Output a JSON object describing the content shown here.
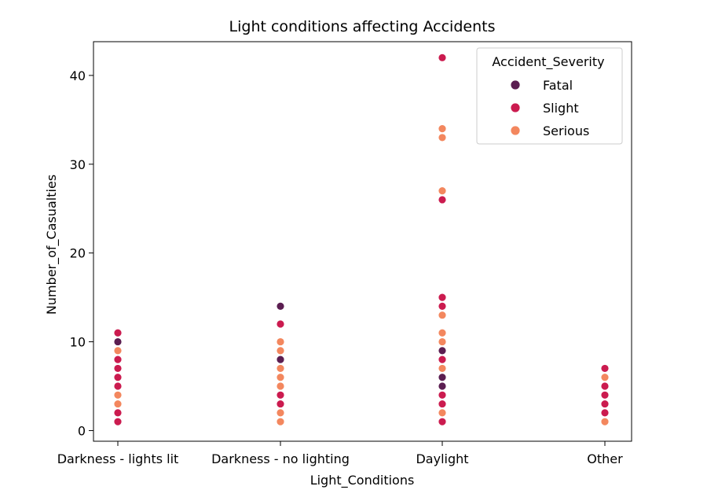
{
  "chart_data": {
    "type": "scatter",
    "title": "Light conditions affecting Accidents",
    "xlabel": "Light_Conditions",
    "ylabel": "Number_of_Casualties",
    "categories": [
      "Darkness - lights lit",
      "Darkness - no lighting",
      "Daylight",
      "Other"
    ],
    "ylim": [
      -1.2,
      43.8
    ],
    "yticks": [
      0,
      10,
      20,
      30,
      40
    ],
    "grid": false,
    "legend": {
      "title": "Accident_Severity",
      "placement": "top-right"
    },
    "series": [
      {
        "name": "Fatal",
        "color": "#5b1e51",
        "points": [
          {
            "x": "Darkness - lights lit",
            "y": 10
          },
          {
            "x": "Darkness - no lighting",
            "y": 8
          },
          {
            "x": "Darkness - no lighting",
            "y": 14
          },
          {
            "x": "Daylight",
            "y": 5
          },
          {
            "x": "Daylight",
            "y": 6
          },
          {
            "x": "Daylight",
            "y": 9
          }
        ]
      },
      {
        "name": "Slight",
        "color": "#cb1b4f",
        "points": [
          {
            "x": "Darkness - lights lit",
            "y": 1
          },
          {
            "x": "Darkness - lights lit",
            "y": 2
          },
          {
            "x": "Darkness - lights lit",
            "y": 5
          },
          {
            "x": "Darkness - lights lit",
            "y": 6
          },
          {
            "x": "Darkness - lights lit",
            "y": 7
          },
          {
            "x": "Darkness - lights lit",
            "y": 8
          },
          {
            "x": "Darkness - lights lit",
            "y": 11
          },
          {
            "x": "Darkness - no lighting",
            "y": 3
          },
          {
            "x": "Darkness - no lighting",
            "y": 4
          },
          {
            "x": "Darkness - no lighting",
            "y": 12
          },
          {
            "x": "Daylight",
            "y": 1
          },
          {
            "x": "Daylight",
            "y": 3
          },
          {
            "x": "Daylight",
            "y": 4
          },
          {
            "x": "Daylight",
            "y": 8
          },
          {
            "x": "Daylight",
            "y": 14
          },
          {
            "x": "Daylight",
            "y": 15
          },
          {
            "x": "Daylight",
            "y": 26
          },
          {
            "x": "Daylight",
            "y": 42
          },
          {
            "x": "Other",
            "y": 2
          },
          {
            "x": "Other",
            "y": 3
          },
          {
            "x": "Other",
            "y": 4
          },
          {
            "x": "Other",
            "y": 5
          },
          {
            "x": "Other",
            "y": 7
          }
        ]
      },
      {
        "name": "Serious",
        "color": "#f3875e",
        "points": [
          {
            "x": "Darkness - lights lit",
            "y": 3
          },
          {
            "x": "Darkness - lights lit",
            "y": 4
          },
          {
            "x": "Darkness - lights lit",
            "y": 9
          },
          {
            "x": "Darkness - no lighting",
            "y": 1
          },
          {
            "x": "Darkness - no lighting",
            "y": 2
          },
          {
            "x": "Darkness - no lighting",
            "y": 5
          },
          {
            "x": "Darkness - no lighting",
            "y": 6
          },
          {
            "x": "Darkness - no lighting",
            "y": 7
          },
          {
            "x": "Darkness - no lighting",
            "y": 9
          },
          {
            "x": "Darkness - no lighting",
            "y": 10
          },
          {
            "x": "Daylight",
            "y": 2
          },
          {
            "x": "Daylight",
            "y": 7
          },
          {
            "x": "Daylight",
            "y": 10
          },
          {
            "x": "Daylight",
            "y": 11
          },
          {
            "x": "Daylight",
            "y": 13
          },
          {
            "x": "Daylight",
            "y": 27
          },
          {
            "x": "Daylight",
            "y": 33
          },
          {
            "x": "Daylight",
            "y": 34
          },
          {
            "x": "Other",
            "y": 1
          },
          {
            "x": "Other",
            "y": 6
          }
        ]
      }
    ]
  }
}
